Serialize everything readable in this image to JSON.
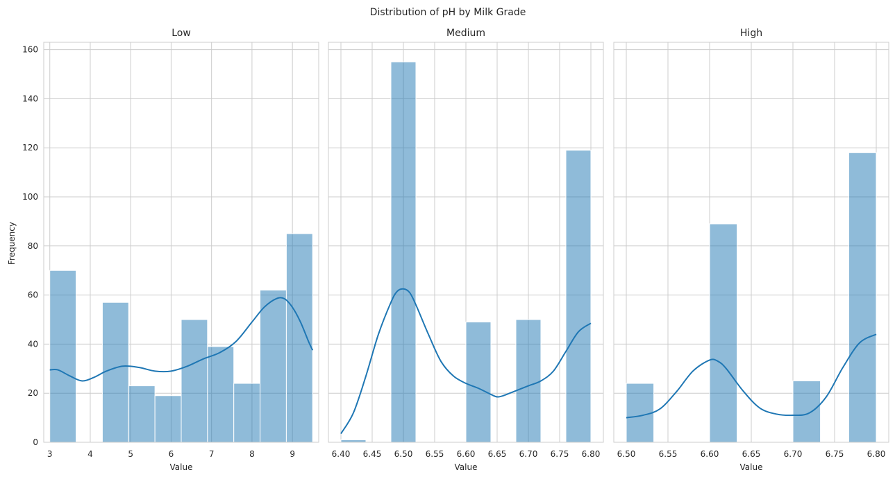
{
  "figure_title": "Distribution of pH by Milk Grade",
  "ylabel": "Frequency",
  "chart_data": [
    {
      "type": "bar",
      "title": "Low",
      "xlabel": "Value",
      "ylabel": "Frequency",
      "xlim": [
        2.85,
        9.65
      ],
      "ylim": [
        0,
        163
      ],
      "xticks": [
        3,
        4,
        5,
        6,
        7,
        8,
        9
      ],
      "xtick_labels": [
        "3",
        "4",
        "5",
        "6",
        "7",
        "8",
        "9"
      ],
      "yticks": [
        0,
        20,
        40,
        60,
        80,
        100,
        120,
        140,
        160
      ],
      "ytick_labels": [
        "0",
        "20",
        "40",
        "60",
        "80",
        "100",
        "120",
        "140",
        "160"
      ],
      "grid": true,
      "bins": [
        {
          "x0": 3.0,
          "x1": 3.65,
          "count": 70
        },
        {
          "x0": 3.65,
          "x1": 4.3,
          "count": 0
        },
        {
          "x0": 4.3,
          "x1": 4.95,
          "count": 57
        },
        {
          "x0": 4.95,
          "x1": 5.6,
          "count": 23
        },
        {
          "x0": 5.6,
          "x1": 6.25,
          "count": 19
        },
        {
          "x0": 6.25,
          "x1": 6.9,
          "count": 50
        },
        {
          "x0": 6.9,
          "x1": 7.55,
          "count": 39
        },
        {
          "x0": 7.55,
          "x1": 8.2,
          "count": 24
        },
        {
          "x0": 8.2,
          "x1": 8.85,
          "count": 62
        },
        {
          "x0": 8.85,
          "x1": 9.5,
          "count": 85
        }
      ],
      "kde": {
        "x": [
          3.0,
          3.2,
          3.5,
          3.8,
          4.1,
          4.4,
          4.8,
          5.2,
          5.6,
          6.0,
          6.4,
          6.8,
          7.2,
          7.6,
          8.0,
          8.3,
          8.6,
          8.8,
          9.0,
          9.2,
          9.4,
          9.5
        ],
        "y": [
          29.5,
          29.5,
          27,
          25,
          26.5,
          29,
          31,
          30.5,
          29,
          29,
          31,
          34,
          36.5,
          41,
          49,
          55,
          58.5,
          58.5,
          55,
          49,
          41,
          37.5
        ]
      }
    },
    {
      "type": "bar",
      "title": "Medium",
      "xlabel": "Value",
      "xlim": [
        6.38,
        6.82
      ],
      "ylim": [
        0,
        163
      ],
      "xticks": [
        6.4,
        6.45,
        6.5,
        6.55,
        6.6,
        6.65,
        6.7,
        6.75,
        6.8
      ],
      "xtick_labels": [
        "6.40",
        "6.45",
        "6.50",
        "6.55",
        "6.60",
        "6.65",
        "6.70",
        "6.75",
        "6.80"
      ],
      "yticks": [
        0,
        20,
        40,
        60,
        80,
        100,
        120,
        140,
        160
      ],
      "grid": true,
      "bins": [
        {
          "x0": 6.4,
          "x1": 6.44,
          "count": 1
        },
        {
          "x0": 6.44,
          "x1": 6.48,
          "count": 0
        },
        {
          "x0": 6.48,
          "x1": 6.52,
          "count": 155
        },
        {
          "x0": 6.52,
          "x1": 6.56,
          "count": 0
        },
        {
          "x0": 6.56,
          "x1": 6.6,
          "count": 0
        },
        {
          "x0": 6.6,
          "x1": 6.64,
          "count": 49
        },
        {
          "x0": 6.64,
          "x1": 6.68,
          "count": 0
        },
        {
          "x0": 6.68,
          "x1": 6.72,
          "count": 50
        },
        {
          "x0": 6.72,
          "x1": 6.76,
          "count": 0
        },
        {
          "x0": 6.76,
          "x1": 6.8,
          "count": 119
        }
      ],
      "kde": {
        "x": [
          6.4,
          6.42,
          6.44,
          6.46,
          6.48,
          6.49,
          6.5,
          6.51,
          6.52,
          6.54,
          6.56,
          6.58,
          6.6,
          6.62,
          6.64,
          6.65,
          6.66,
          6.68,
          6.7,
          6.72,
          6.74,
          6.76,
          6.78,
          6.8
        ],
        "y": [
          3.5,
          12,
          27,
          44,
          57,
          61.5,
          62.5,
          61,
          56,
          44,
          33,
          27,
          24,
          22,
          19.5,
          18.5,
          19,
          21,
          23,
          25,
          29,
          37,
          45,
          48.5
        ]
      }
    },
    {
      "type": "bar",
      "title": "High",
      "xlabel": "Value",
      "xlim": [
        6.485,
        6.815
      ],
      "ylim": [
        0,
        163
      ],
      "xticks": [
        6.5,
        6.55,
        6.6,
        6.65,
        6.7,
        6.75,
        6.8
      ],
      "xtick_labels": [
        "6.50",
        "6.55",
        "6.60",
        "6.65",
        "6.70",
        "6.75",
        "6.80"
      ],
      "yticks": [
        0,
        20,
        40,
        60,
        80,
        100,
        120,
        140,
        160
      ],
      "grid": true,
      "bins": [
        {
          "x0": 6.5,
          "x1": 6.533,
          "count": 24
        },
        {
          "x0": 6.533,
          "x1": 6.567,
          "count": 0
        },
        {
          "x0": 6.567,
          "x1": 6.6,
          "count": 0
        },
        {
          "x0": 6.6,
          "x1": 6.633,
          "count": 89
        },
        {
          "x0": 6.633,
          "x1": 6.667,
          "count": 0
        },
        {
          "x0": 6.667,
          "x1": 6.7,
          "count": 0
        },
        {
          "x0": 6.7,
          "x1": 6.733,
          "count": 25
        },
        {
          "x0": 6.733,
          "x1": 6.767,
          "count": 0
        },
        {
          "x0": 6.767,
          "x1": 6.8,
          "count": 118
        }
      ],
      "kde": {
        "x": [
          6.5,
          6.52,
          6.54,
          6.56,
          6.58,
          6.6,
          6.61,
          6.62,
          6.64,
          6.66,
          6.68,
          6.7,
          6.72,
          6.74,
          6.76,
          6.78,
          6.8
        ],
        "y": [
          10,
          11,
          13.5,
          20.5,
          29,
          33.5,
          33,
          30,
          21,
          14,
          11.5,
          11,
          12,
          18.5,
          30.5,
          40.5,
          44
        ]
      }
    }
  ]
}
